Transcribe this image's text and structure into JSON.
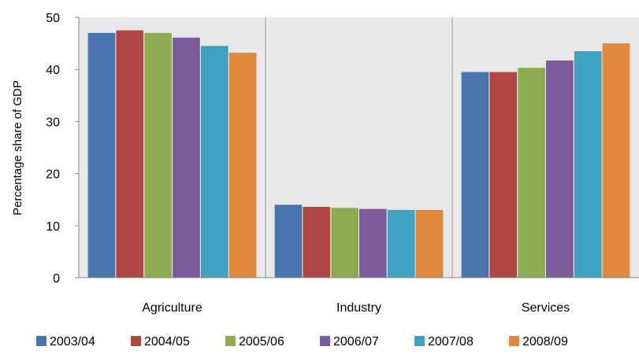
{
  "chart_data": {
    "type": "bar",
    "categories": [
      "Agriculture",
      "Industry",
      "Services"
    ],
    "ylabel": "Percentage share of GDP",
    "xlabel": "",
    "ylim": [
      0,
      50
    ],
    "yticks": [
      0,
      10,
      20,
      30,
      40,
      50
    ],
    "grid": false,
    "plot_background": "#e8e8e8",
    "legend_position": "bottom",
    "series": [
      {
        "name": "2003/04",
        "color": "#4774ad",
        "values": [
          47.0,
          14.0,
          39.5
        ]
      },
      {
        "name": "2004/05",
        "color": "#b04744",
        "values": [
          47.5,
          13.6,
          39.5
        ]
      },
      {
        "name": "2005/06",
        "color": "#8cac4f",
        "values": [
          47.0,
          13.4,
          40.3
        ]
      },
      {
        "name": "2006/07",
        "color": "#7b5b9c",
        "values": [
          46.1,
          13.2,
          41.7
        ]
      },
      {
        "name": "2007/08",
        "color": "#3da3c1",
        "values": [
          44.5,
          13.0,
          43.5
        ]
      },
      {
        "name": "2008/09",
        "color": "#e0883c",
        "values": [
          43.2,
          13.0,
          45.0
        ]
      }
    ]
  }
}
